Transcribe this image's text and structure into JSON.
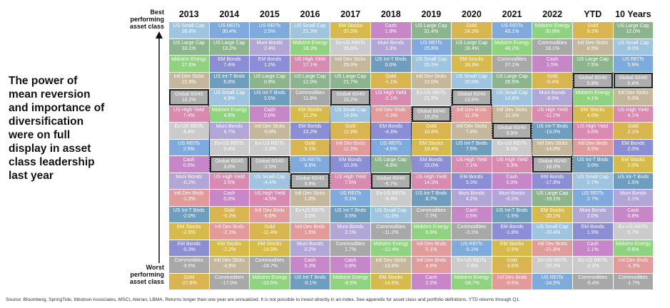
{
  "headline": "The power of\nmean reversion\nand importance of\ndiversification\nwere on full\ndisplay in asset\nclass leadership\nlast year",
  "best_label": "Best\nperforming\nasset class",
  "worst_label": "Worst\nperforming\nasset class",
  "source_note": "Source: Bloomberg, SpringTide, Ibbotson Associates, MSCI, Alerian, LBMA. Returns longer than one year are annualized. It is not possible to invest directly in an index. See appendix for asset class and portfolio definitions. YTD returns through Q1.",
  "asset_colors": {
    "US Small Cap": "#9ec4df",
    "US Large Cap": "#8db58d",
    "Midstrm Energy": "#8fd27f",
    "Intl Dev Stcks": "#c5b79b",
    "Global 60/40": "#adadad",
    "US High Yield": "#d88ab0",
    "Ex-US REITs": "#cbcbcb",
    "US REITs": "#7eaadd",
    "Cash": "#c686c8",
    "Muni Bonds": "#b1a6d6",
    "Intl Dev Bnds": "#e39a9a",
    "US Int-T Bnds": "#6e9dbe",
    "EM Stocks": "#d6ba4c",
    "EM Bonds": "#8b8ed4",
    "Commodities": "#a8a8a8",
    "Gold": "#d8b54e"
  },
  "chart_data": {
    "type": "table",
    "title": "",
    "columns": [
      {
        "header": "2013",
        "cells": [
          {
            "asset": "US Small Cap",
            "value": "38.8%"
          },
          {
            "asset": "US Large Cap",
            "value": "33.1%"
          },
          {
            "asset": "Midstrm Energy",
            "value": "27.6%"
          },
          {
            "asset": "Intl Dev Stcks",
            "value": "22.8%"
          },
          {
            "asset": "Global 60/40",
            "value": "12.2%"
          },
          {
            "asset": "US High Yield",
            "value": "7.4%"
          },
          {
            "asset": "Ex-US REITs",
            "value": "4.4%"
          },
          {
            "asset": "US REITs",
            "value": "2.5%"
          },
          {
            "asset": "Cash",
            "value": "0.0%"
          },
          {
            "asset": "Muni Bonds",
            "value": "-0.2%"
          },
          {
            "asset": "Intl Dev Bnds",
            "value": "-1.3%"
          },
          {
            "asset": "US Int-T Bnds",
            "value": "-2.0%"
          },
          {
            "asset": "EM Stocks",
            "value": "-2.6%"
          },
          {
            "asset": "EM Bonds",
            "value": "-5.3%"
          },
          {
            "asset": "Commodities",
            "value": "-9.5%"
          },
          {
            "asset": "Gold",
            "value": "-27.8%"
          }
        ]
      },
      {
        "header": "2014",
        "cells": [
          {
            "asset": "US REITs",
            "value": "30.4%"
          },
          {
            "asset": "US Large Cap",
            "value": "13.2%"
          },
          {
            "asset": "EM Bonds",
            "value": "7.4%"
          },
          {
            "asset": "US Int-T Bnds",
            "value": "6.0%"
          },
          {
            "asset": "US Small Cap",
            "value": "4.9%"
          },
          {
            "asset": "Midstrm Energy",
            "value": "4.8%"
          },
          {
            "asset": "Muni Bonds",
            "value": "4.7%"
          },
          {
            "asset": "Ex-US REITs",
            "value": "3.4%"
          },
          {
            "asset": "Global 60/40",
            "value": "3.0%"
          },
          {
            "asset": "US High Yield",
            "value": "2.5%"
          },
          {
            "asset": "Cash",
            "value": "0.0%"
          },
          {
            "asset": "Gold",
            "value": "-0.2%"
          },
          {
            "asset": "Intl Dev Bnds",
            "value": "-2.1%"
          },
          {
            "asset": "EM Stocks",
            "value": "-2.2%"
          },
          {
            "asset": "Intl Dev Stcks",
            "value": "-4.9%"
          },
          {
            "asset": "Commodities",
            "value": "-17.0%"
          }
        ]
      },
      {
        "header": "2015",
        "cells": [
          {
            "asset": "US REITs",
            "value": "2.5%"
          },
          {
            "asset": "Muni Bonds",
            "value": "2.4%"
          },
          {
            "asset": "EM Bonds",
            "value": "1.2%"
          },
          {
            "asset": "US Large Cap",
            "value": "0.9%"
          },
          {
            "asset": "US Int-T Bnds",
            "value": "0.5%"
          },
          {
            "asset": "Cash",
            "value": "0.0%"
          },
          {
            "asset": "Intl Dev Stcks",
            "value": "-0.8%"
          },
          {
            "asset": "Ex-US REITs",
            "value": "-1.3%"
          },
          {
            "asset": "Global 60/40",
            "value": "-2.5%"
          },
          {
            "asset": "US Small Cap",
            "value": "-4.4%"
          },
          {
            "asset": "US High Yield",
            "value": "-4.5%"
          },
          {
            "asset": "Intl Dev Bnds",
            "value": "-6.6%"
          },
          {
            "asset": "Gold",
            "value": "-11.4%"
          },
          {
            "asset": "EM Stocks",
            "value": "-14.9%"
          },
          {
            "asset": "Commodities",
            "value": "-24.7%"
          },
          {
            "asset": "Midstrm Energy",
            "value": "-32.6%"
          }
        ]
      },
      {
        "header": "2016",
        "cells": [
          {
            "asset": "US Small Cap",
            "value": "21.3%"
          },
          {
            "asset": "Midstrm Energy",
            "value": "18.3%"
          },
          {
            "asset": "US High Yield",
            "value": "17.1%"
          },
          {
            "asset": "US Large Cap",
            "value": "12.0%"
          },
          {
            "asset": "Commodities",
            "value": "11.8%"
          },
          {
            "asset": "EM Stocks",
            "value": "11.2%"
          },
          {
            "asset": "EM Bonds",
            "value": "10.2%"
          },
          {
            "asset": "Gold",
            "value": "9.1%"
          },
          {
            "asset": "US REITs",
            "value": "8.6%"
          },
          {
            "asset": "Global 60/40",
            "value": "5.9%"
          },
          {
            "asset": "Intl Dev Stcks",
            "value": "1.0%"
          },
          {
            "asset": "Ex-US REITs",
            "value": "2.0%"
          },
          {
            "asset": "Intl Dev Bnds",
            "value": "1.6%"
          },
          {
            "asset": "Muni Bonds",
            "value": "0.2%"
          },
          {
            "asset": "Cash",
            "value": "0.3%"
          },
          {
            "asset": "US Int-T Bnds",
            "value": "-0.1%"
          }
        ]
      },
      {
        "header": "2017",
        "cells": [
          {
            "asset": "EM Stocks",
            "value": "37.3%"
          },
          {
            "asset": "Ex-US REITs",
            "value": "26.6%"
          },
          {
            "asset": "Intl Dev Stcks",
            "value": "25.0%"
          },
          {
            "asset": "US Large Cap",
            "value": "21.7%"
          },
          {
            "asset": "Global 60/40",
            "value": "15.2%"
          },
          {
            "asset": "US Small Cap",
            "value": "14.6%"
          },
          {
            "asset": "Gold",
            "value": "11.9%"
          },
          {
            "asset": "Intl Dev Bnds",
            "value": "11.3%"
          },
          {
            "asset": "EM Bonds",
            "value": "10.3%"
          },
          {
            "asset": "US High Yield",
            "value": "7.5%"
          },
          {
            "asset": "US REITs",
            "value": "5.1%"
          },
          {
            "asset": "US Int-T Bnds",
            "value": "3.5%"
          },
          {
            "asset": "Muni Bonds",
            "value": "3.1%"
          },
          {
            "asset": "Commodities",
            "value": "1.7%"
          },
          {
            "asset": "Cash",
            "value": "0.8%"
          },
          {
            "asset": "Midstrm Energy",
            "value": "-6.5%"
          }
        ]
      },
      {
        "header": "2018",
        "cells": [
          {
            "asset": "Cash",
            "value": "1.8%"
          },
          {
            "asset": "Muni Bonds",
            "value": "1.3%"
          },
          {
            "asset": "US Int-T Bnds",
            "value": "0.0%"
          },
          {
            "asset": "Gold",
            "value": "-1.1%"
          },
          {
            "asset": "US High Yield",
            "value": "-2.1%"
          },
          {
            "asset": "Intl Dev Bnds",
            "value": "-2.3%"
          },
          {
            "asset": "EM Bonds",
            "value": "-4.3%"
          },
          {
            "asset": "US REITs",
            "value": "-4.6%"
          },
          {
            "asset": "US Large Cap",
            "value": "-4.8%"
          },
          {
            "asset": "Global 60/40",
            "value": "-5.7%"
          },
          {
            "asset": "Ex-US REITs",
            "value": "-9.4%"
          },
          {
            "asset": "US Small Cap",
            "value": "-11.0%"
          },
          {
            "asset": "Commodities",
            "value": "-11.2%"
          },
          {
            "asset": "Midstrm Energy",
            "value": "-12.4%"
          },
          {
            "asset": "Intl Dev Stcks",
            "value": "-13.8%"
          },
          {
            "asset": "EM Stocks",
            "value": "-14.6%"
          }
        ]
      },
      {
        "header": "2019",
        "cells": [
          {
            "asset": "US Large Cap",
            "value": "31.4%"
          },
          {
            "asset": "US REITs",
            "value": "25.8%"
          },
          {
            "asset": "US Small Cap",
            "value": "25.5%"
          },
          {
            "asset": "Intl Dev Stcks",
            "value": "22.0%"
          },
          {
            "asset": "Ex-US REITs",
            "value": "21.9%"
          },
          {
            "asset": "Global 60/40",
            "value": "19.2%"
          },
          {
            "asset": "Gold",
            "value": "18.8%"
          },
          {
            "asset": "EM Stocks",
            "value": "18.4%"
          },
          {
            "asset": "EM Bonds",
            "value": "15.0%"
          },
          {
            "asset": "US High Yield",
            "value": "14.3%"
          },
          {
            "asset": "US Int-T Bnds",
            "value": "8.7%"
          },
          {
            "asset": "Commodities",
            "value": "7.7%"
          },
          {
            "asset": "Midstrm Energy",
            "value": "6.6%"
          },
          {
            "asset": "Intl Dev Bnds",
            "value": "5.1%"
          },
          {
            "asset": "Intl Dev Bnds",
            "value": "4.6%"
          },
          {
            "asset": "Cash",
            "value": "2.2%"
          }
        ]
      },
      {
        "header": "2020",
        "cells": [
          {
            "asset": "Gold",
            "value": "24.2%"
          },
          {
            "asset": "US Large Cap",
            "value": "18.4%"
          },
          {
            "asset": "EM Stocks",
            "value": "18.3%"
          },
          {
            "asset": "US Small Cap",
            "value": "20.0%"
          },
          {
            "asset": "Global 60/40",
            "value": "13.6%"
          },
          {
            "asset": "Intl Dev Bnds",
            "value": "11.2%"
          },
          {
            "asset": "Intl Dev Stcks",
            "value": "7.8%"
          },
          {
            "asset": "US Int-T Bnds",
            "value": "7.5%"
          },
          {
            "asset": "US High Yield",
            "value": "7.1%"
          },
          {
            "asset": "EM Bonds",
            "value": "5.3%"
          },
          {
            "asset": "Muni Bonds",
            "value": "4.2%"
          },
          {
            "asset": "Cash",
            "value": "0.5%"
          },
          {
            "asset": "Commodities",
            "value": "-3.1%"
          },
          {
            "asset": "US REITs",
            "value": "-5.1%"
          },
          {
            "asset": "Ex-US REITs",
            "value": "-7.6%"
          },
          {
            "asset": "Midstrm Energy",
            "value": "-28.7%"
          }
        ]
      },
      {
        "header": "2021",
        "cells": [
          {
            "asset": "US REITs",
            "value": "43.1%"
          },
          {
            "asset": "Midstrm Energy",
            "value": "40.2%"
          },
          {
            "asset": "Commodities",
            "value": "27.1%"
          },
          {
            "asset": "US Large Cap",
            "value": "26.5%"
          },
          {
            "asset": "US Small Cap",
            "value": "14.8%"
          },
          {
            "asset": "Intl Dev Stcks",
            "value": "11.3%"
          },
          {
            "asset": "Global 60/40",
            "value": "9.9%"
          },
          {
            "asset": "Ex-US REITs",
            "value": "8.1%"
          },
          {
            "asset": "US High Yield",
            "value": "5.3%"
          },
          {
            "asset": "Cash",
            "value": "0.0%"
          },
          {
            "asset": "Muni Bonds",
            "value": "-0.2%"
          },
          {
            "asset": "US Int-T Bnds",
            "value": "-1.5%"
          },
          {
            "asset": "EM Bonds",
            "value": "-1.8%"
          },
          {
            "asset": "EM Stocks",
            "value": "-2.5%"
          },
          {
            "asset": "Gold",
            "value": "-3.6%"
          },
          {
            "asset": "Intl Dev Bnds",
            "value": "-9.5%"
          }
        ]
      },
      {
        "header": "2022",
        "cells": [
          {
            "asset": "Midstrm Energy",
            "value": "30.9%"
          },
          {
            "asset": "Commodities",
            "value": "16.1%"
          },
          {
            "asset": "Cash",
            "value": "1.5%"
          },
          {
            "asset": "Gold",
            "value": "-0.4%"
          },
          {
            "asset": "Muni Bonds",
            "value": "-8.5%"
          },
          {
            "asset": "US High Yield",
            "value": "-11.2%"
          },
          {
            "asset": "US Int-T Bnds",
            "value": "-13.0%"
          },
          {
            "asset": "Intl Dev Stcks",
            "value": "-14.0%"
          },
          {
            "asset": "Global 60/40",
            "value": "-16.0%"
          },
          {
            "asset": "EM Bonds",
            "value": "-17.8%"
          },
          {
            "asset": "US Large Cap",
            "value": "-19.1%"
          },
          {
            "asset": "EM Stocks",
            "value": "-20.1%"
          },
          {
            "asset": "US Small Cap",
            "value": "-20.4%"
          },
          {
            "asset": "Intl Dev Bnds",
            "value": "-21.8%"
          },
          {
            "asset": "Ex-US REITs",
            "value": "-22.2%"
          },
          {
            "asset": "US REITs",
            "value": "-24.5%"
          }
        ]
      },
      {
        "header": "YTD",
        "cells": [
          {
            "asset": "Gold",
            "value": "9.2%"
          },
          {
            "asset": "Intl Dev Stcks",
            "value": "8.5%"
          },
          {
            "asset": "US Large Cap",
            "value": "7.5%"
          },
          {
            "asset": "Global 60/40",
            "value": "5.8%"
          },
          {
            "asset": "Midstrm Energy",
            "value": "4.1%"
          },
          {
            "asset": "EM Stocks",
            "value": "4.0%"
          },
          {
            "asset": "US High Yield",
            "value": "3.6%"
          },
          {
            "asset": "Intl Dev Bnds",
            "value": "3.5%"
          },
          {
            "asset": "US Int-T Bnds",
            "value": "3.0%"
          },
          {
            "asset": "US Small Cap",
            "value": "2.7%"
          },
          {
            "asset": "US REITs",
            "value": "2.7%"
          },
          {
            "asset": "Muni Bonds",
            "value": "2.0%"
          },
          {
            "asset": "EM Bonds",
            "value": "1.9%"
          },
          {
            "asset": "Cash",
            "value": "1.1%"
          },
          {
            "asset": "Ex-US REITs",
            "value": "-2.3%"
          },
          {
            "asset": "Commodities",
            "value": "-5.4%"
          }
        ]
      },
      {
        "header": "10 Years",
        "cells": [
          {
            "asset": "US Large Cap",
            "value": "12.0%"
          },
          {
            "asset": "US Small Cap",
            "value": "8.0%"
          },
          {
            "asset": "US REITs",
            "value": "5.9%"
          },
          {
            "asset": "Global 60/40",
            "value": "5.4%"
          },
          {
            "asset": "Intl Dev Stcks",
            "value": "5.0%"
          },
          {
            "asset": "US High Yield",
            "value": "4.1%"
          },
          {
            "asset": "Gold",
            "value": "2.1%"
          },
          {
            "asset": "EM Bonds",
            "value": "2.0%"
          },
          {
            "asset": "EM Stocks",
            "value": "2.0%"
          },
          {
            "asset": "US Int-T Bnds",
            "value": "1.5%"
          },
          {
            "asset": "Muni Bonds",
            "value": "2.1%"
          },
          {
            "asset": "Cash",
            "value": "0.8%"
          },
          {
            "asset": "Ex-US REITs",
            "value": "0.7%"
          },
          {
            "asset": "Midstrm Energy",
            "value": "0.6%"
          },
          {
            "asset": "Intl Dev Bnds",
            "value": "-1.3%"
          },
          {
            "asset": "Commodities",
            "value": "-1.7%"
          }
        ]
      }
    ],
    "highlighted_asset": "Global 60/40"
  }
}
